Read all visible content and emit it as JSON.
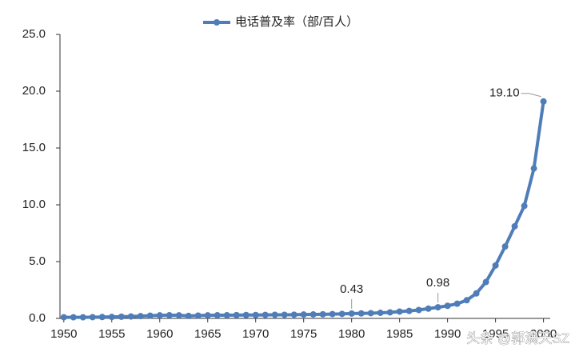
{
  "chart_data": {
    "type": "line",
    "x": [
      1950,
      1951,
      1952,
      1953,
      1954,
      1955,
      1956,
      1957,
      1958,
      1959,
      1960,
      1961,
      1962,
      1963,
      1964,
      1965,
      1966,
      1967,
      1968,
      1969,
      1970,
      1971,
      1972,
      1973,
      1974,
      1975,
      1976,
      1977,
      1978,
      1979,
      1980,
      1981,
      1982,
      1983,
      1984,
      1985,
      1986,
      1987,
      1988,
      1989,
      1990,
      1991,
      1992,
      1993,
      1994,
      1995,
      1996,
      1997,
      1998,
      1999,
      2000
    ],
    "series": [
      {
        "name": "电话普及率（部/百人）",
        "color": "#4f7db8",
        "values": [
          0.1,
          0.1,
          0.1,
          0.11,
          0.12,
          0.13,
          0.15,
          0.17,
          0.2,
          0.24,
          0.27,
          0.28,
          0.27,
          0.22,
          0.25,
          0.27,
          0.28,
          0.28,
          0.29,
          0.3,
          0.3,
          0.31,
          0.32,
          0.32,
          0.33,
          0.34,
          0.35,
          0.36,
          0.38,
          0.4,
          0.43,
          0.44,
          0.46,
          0.49,
          0.53,
          0.6,
          0.66,
          0.74,
          0.86,
          0.98,
          1.11,
          1.29,
          1.6,
          2.2,
          3.2,
          4.66,
          6.33,
          8.11,
          9.9,
          13.2,
          19.1
        ],
        "value_labels": [
          null,
          null,
          null,
          null,
          null,
          null,
          null,
          null,
          null,
          null,
          null,
          null,
          null,
          null,
          null,
          null,
          null,
          null,
          null,
          null,
          null,
          null,
          null,
          null,
          null,
          null,
          null,
          null,
          null,
          null,
          "0.43",
          null,
          null,
          null,
          null,
          null,
          null,
          null,
          null,
          "0.98",
          null,
          null,
          null,
          null,
          null,
          null,
          null,
          null,
          null,
          null,
          "19.10"
        ]
      }
    ],
    "xlim": [
      1949.6,
      2000.7
    ],
    "xticks": [
      1950,
      1955,
      1960,
      1965,
      1970,
      1975,
      1980,
      1985,
      1990,
      1995,
      2000
    ],
    "ylim": [
      0,
      25
    ],
    "yticks": [
      {
        "value": 0,
        "label": "0.0"
      },
      {
        "value": 5,
        "label": "5.0"
      },
      {
        "value": 10,
        "label": "10.0"
      },
      {
        "value": 15,
        "label": "15.0"
      },
      {
        "value": 20,
        "label": "20.0"
      },
      {
        "value": 25,
        "label": "25.0"
      }
    ],
    "legend": "top",
    "watermark": "头条 @郭满天SZ"
  }
}
